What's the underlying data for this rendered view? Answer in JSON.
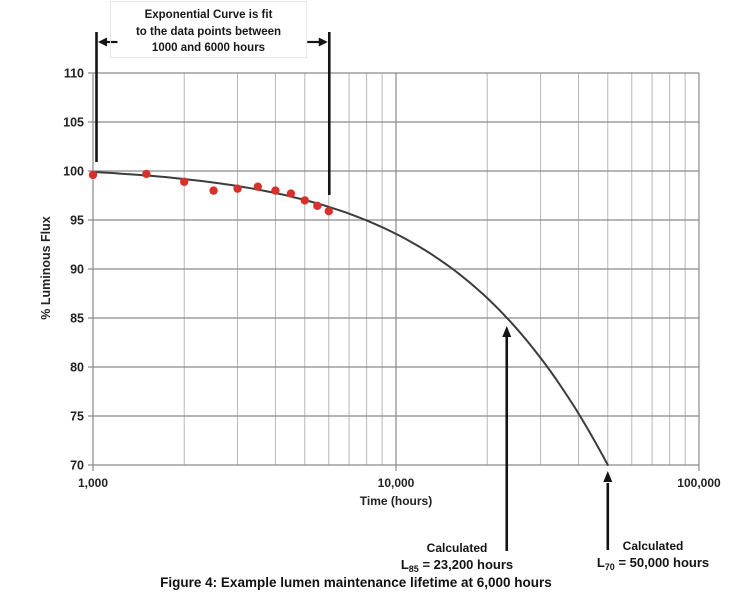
{
  "figure": {
    "caption": "Figure 4: Example lumen maintenance lifetime at 6,000 hours"
  },
  "colors": {
    "point": "#d8302a",
    "curve": "#3c3c3c",
    "grid_major": "#8a8a8a",
    "grid_minor": "#b7b7b7",
    "annotation": "#141414",
    "text": "#222222"
  },
  "chart_data": {
    "type": "line",
    "title": "Figure 4: Example lumen maintenance lifetime at 6,000 hours",
    "xlabel": "Time (hours)",
    "ylabel": "% Luminous Flux",
    "x_scale": "log",
    "xlim": [
      1000,
      100000
    ],
    "ylim": [
      70,
      110
    ],
    "grid": true,
    "legend": "none",
    "y_ticks": [
      110,
      105,
      100,
      95,
      90,
      85,
      80,
      75,
      70
    ],
    "x_ticks": [
      {
        "value": 1000,
        "label": "1,000"
      },
      {
        "value": 10000,
        "label": "10,000"
      },
      {
        "value": 100000,
        "label": "100,000"
      }
    ],
    "x_minor_ticks": [
      2000,
      3000,
      4000,
      5000,
      6000,
      7000,
      8000,
      9000,
      20000,
      30000,
      40000,
      50000,
      60000,
      70000,
      80000,
      90000
    ],
    "series": [
      {
        "name": "measured-data-points",
        "type": "scatter",
        "color": "#d8302a",
        "points": [
          [
            1000,
            99.6
          ],
          [
            1500,
            99.7
          ],
          [
            2000,
            98.9
          ],
          [
            2500,
            98.0
          ],
          [
            3000,
            98.2
          ],
          [
            3500,
            98.4
          ],
          [
            4000,
            98.0
          ],
          [
            4500,
            97.7
          ],
          [
            5000,
            97.0
          ],
          [
            5500,
            96.45
          ],
          [
            6000,
            95.9
          ]
        ]
      },
      {
        "name": "exponential-fit-curve",
        "type": "curve",
        "color": "#3c3c3c",
        "model": "L(t) = A * exp(-k * t)",
        "A": 100.63,
        "k": 7.26e-06,
        "t_start": 1000,
        "t_end": 50000
      }
    ],
    "annotations": {
      "fit_range": {
        "lines": [
          "Exponential Curve is fit",
          "to the data points between",
          "1000 and 6000 hours"
        ],
        "t_start": 1000,
        "t_end": 6000
      },
      "l85": {
        "title": "Calculated",
        "symbol": "L",
        "sub": "85",
        "value_text": "= 23,200 hours",
        "t": 23200,
        "flux": 85
      },
      "l70": {
        "title": "Calculated",
        "symbol": "L",
        "sub": "70",
        "value_text": "= 50,000 hours",
        "t": 50000,
        "flux": 70
      }
    }
  }
}
